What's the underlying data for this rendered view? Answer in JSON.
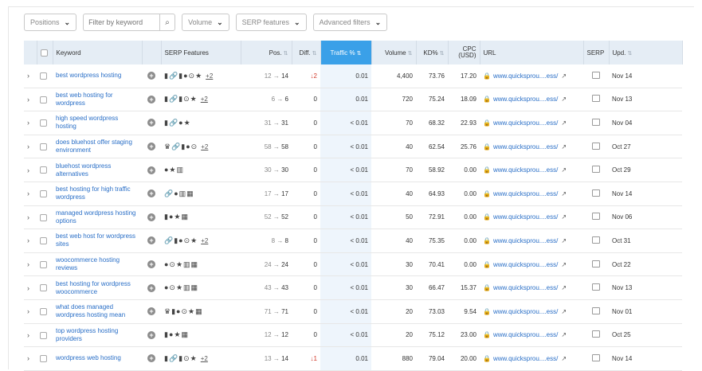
{
  "filters": {
    "positions": "Positions",
    "search_placeholder": "Filter by keyword",
    "volume": "Volume",
    "serp_features": "SERP features",
    "advanced": "Advanced filters"
  },
  "columns": {
    "keyword": "Keyword",
    "serp_features": "SERP Features",
    "pos": "Pos.",
    "diff": "Diff.",
    "traffic": "Traffic %",
    "volume": "Volume",
    "kd": "KD%",
    "cpc_line1": "CPC",
    "cpc_line2": "(USD)",
    "url": "URL",
    "serp": "SERP",
    "upd": "Upd."
  },
  "rows": [
    {
      "keyword": "best wordpress hosting",
      "features": "▮🔗▮●⊙★",
      "more": "+2",
      "pos_from": "12",
      "pos_to": "14",
      "diff": "↓2",
      "diff_neg": true,
      "traffic": "0.01",
      "volume": "4,400",
      "kd": "73.76",
      "cpc": "17.20",
      "url": "www.quicksprou....ess/",
      "upd": "Nov 14"
    },
    {
      "keyword": "best web hosting for wordpress",
      "features": "▮🔗▮⊙★",
      "more": "+2",
      "pos_from": "6",
      "pos_to": "6",
      "diff": "0",
      "diff_neg": false,
      "traffic": "0.01",
      "volume": "720",
      "kd": "75.24",
      "cpc": "18.09",
      "url": "www.quicksprou....ess/",
      "upd": "Nov 13"
    },
    {
      "keyword": "high speed wordpress hosting",
      "features": "▮🔗●★",
      "more": "",
      "pos_from": "31",
      "pos_to": "31",
      "diff": "0",
      "diff_neg": false,
      "traffic": "< 0.01",
      "volume": "70",
      "kd": "68.32",
      "cpc": "22.93",
      "url": "www.quicksprou....ess/",
      "upd": "Nov 04"
    },
    {
      "keyword": "does bluehost offer staging environment",
      "features": "♛🔗▮●⊙",
      "more": "+2",
      "pos_from": "58",
      "pos_to": "58",
      "diff": "0",
      "diff_neg": false,
      "traffic": "< 0.01",
      "volume": "40",
      "kd": "62.54",
      "cpc": "25.76",
      "url": "www.quicksprou....ess/",
      "upd": "Oct 27"
    },
    {
      "keyword": "bluehost wordpress alternatives",
      "features": "●★▥",
      "more": "",
      "pos_from": "30",
      "pos_to": "30",
      "diff": "0",
      "diff_neg": false,
      "traffic": "< 0.01",
      "volume": "70",
      "kd": "58.92",
      "cpc": "0.00",
      "url": "www.quicksprou....ess/",
      "upd": "Oct 29"
    },
    {
      "keyword": "best hosting for high traffic wordpress",
      "features": "🔗●▥▦",
      "more": "",
      "pos_from": "17",
      "pos_to": "17",
      "diff": "0",
      "diff_neg": false,
      "traffic": "< 0.01",
      "volume": "40",
      "kd": "64.93",
      "cpc": "0.00",
      "url": "www.quicksprou....ess/",
      "upd": "Nov 14"
    },
    {
      "keyword": "managed wordpress hosting options",
      "features": "▮●★▦",
      "more": "",
      "pos_from": "52",
      "pos_to": "52",
      "diff": "0",
      "diff_neg": false,
      "traffic": "< 0.01",
      "volume": "50",
      "kd": "72.91",
      "cpc": "0.00",
      "url": "www.quicksprou....ess/",
      "upd": "Nov 06"
    },
    {
      "keyword": "best web host for wordpress sites",
      "features": "🔗▮●⊙★",
      "more": "+2",
      "pos_from": "8",
      "pos_to": "8",
      "diff": "0",
      "diff_neg": false,
      "traffic": "< 0.01",
      "volume": "40",
      "kd": "75.35",
      "cpc": "0.00",
      "url": "www.quicksprou....ess/",
      "upd": "Oct 31"
    },
    {
      "keyword": "woocommerce hosting reviews",
      "features": "●⊙★▥▦",
      "more": "",
      "pos_from": "24",
      "pos_to": "24",
      "diff": "0",
      "diff_neg": false,
      "traffic": "< 0.01",
      "volume": "30",
      "kd": "70.41",
      "cpc": "0.00",
      "url": "www.quicksprou....ess/",
      "upd": "Oct 22"
    },
    {
      "keyword": "best hosting for wordpress woocommerce",
      "features": "●⊙★▥▦",
      "more": "",
      "pos_from": "43",
      "pos_to": "43",
      "diff": "0",
      "diff_neg": false,
      "traffic": "< 0.01",
      "volume": "30",
      "kd": "66.47",
      "cpc": "15.37",
      "url": "www.quicksprou....ess/",
      "upd": "Nov 13"
    },
    {
      "keyword": "what does managed wordpress hosting mean",
      "features": "♛▮●⊙★▦",
      "more": "",
      "pos_from": "71",
      "pos_to": "71",
      "diff": "0",
      "diff_neg": false,
      "traffic": "< 0.01",
      "volume": "20",
      "kd": "73.03",
      "cpc": "9.54",
      "url": "www.quicksprou....ess/",
      "upd": "Nov 01"
    },
    {
      "keyword": "top wordpress hosting providers",
      "features": "▮●★▦",
      "more": "",
      "pos_from": "12",
      "pos_to": "12",
      "diff": "0",
      "diff_neg": false,
      "traffic": "< 0.01",
      "volume": "20",
      "kd": "75.12",
      "cpc": "23.00",
      "url": "www.quicksprou....ess/",
      "upd": "Oct 25"
    },
    {
      "keyword": "wordpress web hosting",
      "features": "▮🔗▮⊙★",
      "more": "+2",
      "pos_from": "13",
      "pos_to": "14",
      "diff": "↓1",
      "diff_neg": true,
      "traffic": "0.01",
      "volume": "880",
      "kd": "79.04",
      "cpc": "20.00",
      "url": "www.quicksprou....ess/",
      "upd": "Nov 14"
    }
  ]
}
